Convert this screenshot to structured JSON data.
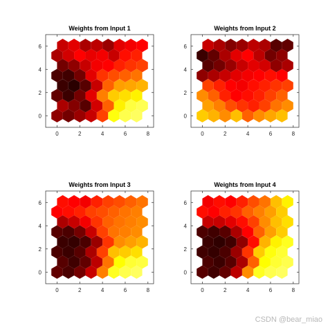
{
  "chart_data": [
    {
      "type": "heatmap",
      "title": "Weights from Input 1",
      "xlim": [
        -1,
        8.5
      ],
      "ylim": [
        -1,
        7
      ],
      "xticks": [
        0,
        2,
        4,
        6,
        8
      ],
      "yticks": [
        0,
        2,
        4,
        6
      ],
      "grid": false,
      "layout": "hexagonal 8x8 som grid",
      "colormap": "hot",
      "rows": [
        [
          0.2,
          0.15,
          0.22,
          0.3,
          0.5,
          0.82,
          0.92,
          0.95
        ],
        [
          0.25,
          0.18,
          0.1,
          0.32,
          0.55,
          0.78,
          0.9,
          0.93
        ],
        [
          0.12,
          0.05,
          0.15,
          0.35,
          0.6,
          0.72,
          0.75,
          0.78
        ],
        [
          0.05,
          0.02,
          0.1,
          0.3,
          0.55,
          0.65,
          0.66,
          0.68
        ],
        [
          0.08,
          0.06,
          0.15,
          0.35,
          0.48,
          0.52,
          0.55,
          0.58
        ],
        [
          0.15,
          0.2,
          0.3,
          0.38,
          0.4,
          0.45,
          0.48,
          0.5
        ],
        [
          0.25,
          0.32,
          0.4,
          0.36,
          0.38,
          0.3,
          0.42,
          0.45
        ],
        [
          0.3,
          0.35,
          0.25,
          0.28,
          0.22,
          0.35,
          0.38,
          0.4
        ]
      ]
    },
    {
      "type": "heatmap",
      "title": "Weights from Input 2",
      "xlim": [
        -1,
        8.5
      ],
      "ylim": [
        -1,
        7
      ],
      "xticks": [
        0,
        2,
        4,
        6,
        8
      ],
      "yticks": [
        0,
        2,
        4,
        6
      ],
      "grid": false,
      "layout": "hexagonal 8x8 som grid",
      "colormap": "hot",
      "rows": [
        [
          0.72,
          0.68,
          0.62,
          0.7,
          0.55,
          0.62,
          0.66,
          0.7
        ],
        [
          0.65,
          0.6,
          0.52,
          0.48,
          0.45,
          0.5,
          0.58,
          0.62
        ],
        [
          0.62,
          0.55,
          0.45,
          0.4,
          0.42,
          0.45,
          0.5,
          0.55
        ],
        [
          0.5,
          0.45,
          0.4,
          0.38,
          0.42,
          0.45,
          0.48,
          0.5
        ],
        [
          0.2,
          0.25,
          0.3,
          0.35,
          0.38,
          0.4,
          0.42,
          0.4
        ],
        [
          0.1,
          0.15,
          0.22,
          0.3,
          0.35,
          0.32,
          0.2,
          0.25
        ],
        [
          0.05,
          0.12,
          0.25,
          0.35,
          0.4,
          0.28,
          0.15,
          0.2
        ],
        [
          0.3,
          0.25,
          0.18,
          0.22,
          0.28,
          0.25,
          0.1,
          0.12
        ]
      ]
    },
    {
      "type": "heatmap",
      "title": "Weights from Input 3",
      "xlim": [
        -1,
        8.5
      ],
      "ylim": [
        -1,
        7
      ],
      "xticks": [
        0,
        2,
        4,
        6,
        8
      ],
      "yticks": [
        0,
        2,
        4,
        6
      ],
      "grid": false,
      "layout": "hexagonal 8x8 som grid",
      "colormap": "hot",
      "rows": [
        [
          0.12,
          0.08,
          0.15,
          0.3,
          0.6,
          0.85,
          0.92,
          0.95
        ],
        [
          0.1,
          0.06,
          0.12,
          0.28,
          0.58,
          0.8,
          0.88,
          0.9
        ],
        [
          0.08,
          0.05,
          0.1,
          0.25,
          0.5,
          0.7,
          0.72,
          0.75
        ],
        [
          0.05,
          0.04,
          0.08,
          0.22,
          0.48,
          0.62,
          0.65,
          0.68
        ],
        [
          0.1,
          0.08,
          0.15,
          0.3,
          0.5,
          0.58,
          0.6,
          0.62
        ],
        [
          0.25,
          0.3,
          0.38,
          0.48,
          0.55,
          0.58,
          0.6,
          0.62
        ],
        [
          0.4,
          0.42,
          0.45,
          0.5,
          0.52,
          0.55,
          0.58,
          0.6
        ],
        [
          0.42,
          0.4,
          0.38,
          0.45,
          0.5,
          0.52,
          0.55,
          0.58
        ]
      ]
    },
    {
      "type": "heatmap",
      "title": "Weights from Input 4",
      "xlim": [
        -1,
        8.5
      ],
      "ylim": [
        -1,
        7
      ],
      "xticks": [
        0,
        2,
        4,
        6,
        8
      ],
      "yticks": [
        0,
        2,
        4,
        6
      ],
      "grid": false,
      "layout": "hexagonal 8x8 som grid",
      "colormap": "hot",
      "rows": [
        [
          0.1,
          0.06,
          0.12,
          0.28,
          0.62,
          0.85,
          0.92,
          0.95
        ],
        [
          0.08,
          0.05,
          0.1,
          0.25,
          0.55,
          0.8,
          0.88,
          0.92
        ],
        [
          0.06,
          0.04,
          0.08,
          0.22,
          0.48,
          0.72,
          0.82,
          0.88
        ],
        [
          0.05,
          0.03,
          0.06,
          0.2,
          0.42,
          0.68,
          0.78,
          0.85
        ],
        [
          0.08,
          0.06,
          0.1,
          0.25,
          0.4,
          0.55,
          0.65,
          0.72
        ],
        [
          0.3,
          0.3,
          0.35,
          0.42,
          0.5,
          0.62,
          0.7,
          0.75
        ],
        [
          0.42,
          0.4,
          0.45,
          0.48,
          0.55,
          0.6,
          0.65,
          0.72
        ],
        [
          0.38,
          0.42,
          0.4,
          0.45,
          0.52,
          0.58,
          0.7,
          0.78
        ]
      ]
    }
  ],
  "watermark": "CSDN @bear_miao"
}
